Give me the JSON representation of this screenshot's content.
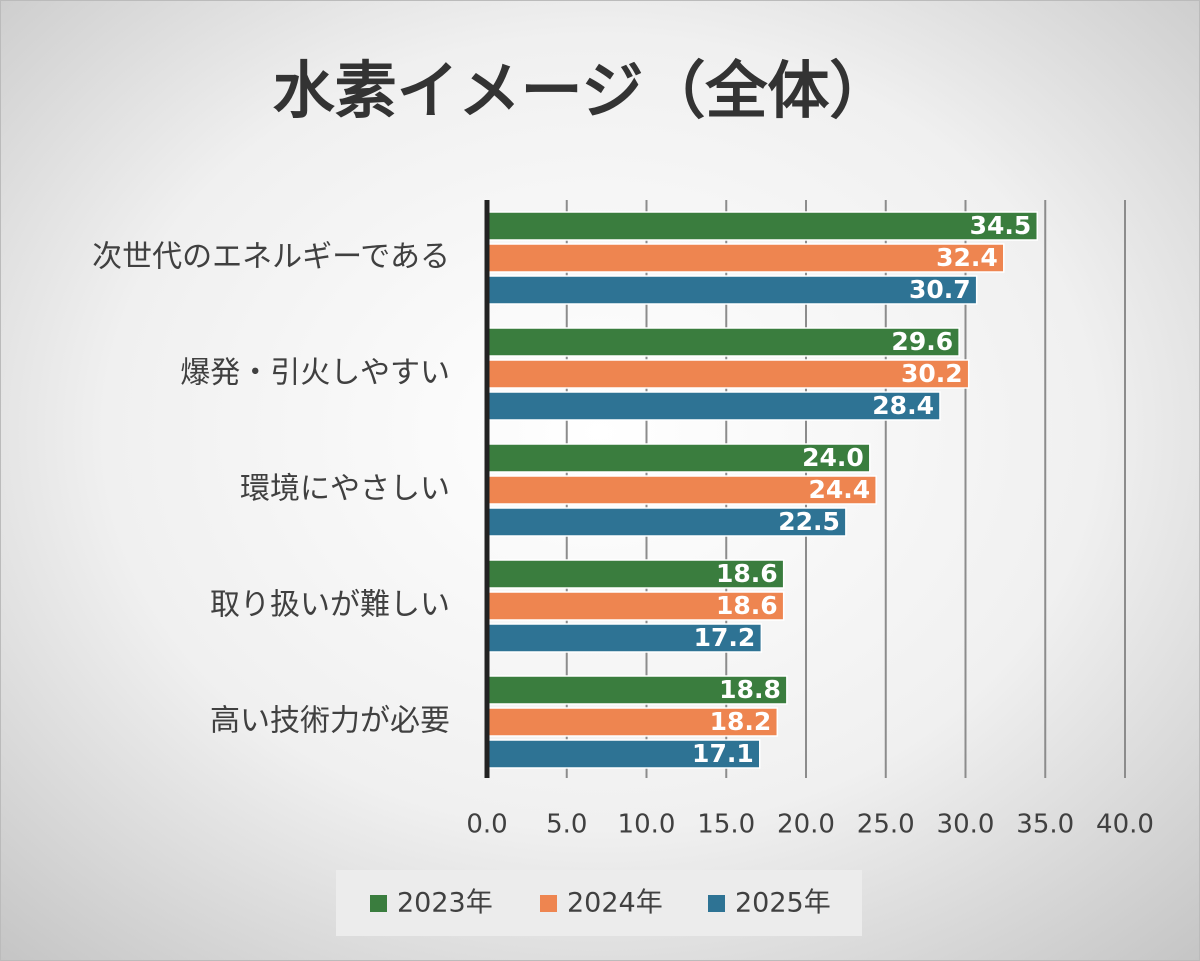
{
  "chart_data": {
    "type": "bar",
    "orientation": "horizontal",
    "title": "水素イメージ（全体）",
    "categories": [
      "次世代のエネルギーである",
      "爆発・引火しやすい",
      "環境にやさしい",
      "取り扱いが難しい",
      "高い技術力が必要"
    ],
    "series": [
      {
        "name": "2023年",
        "color": "#3a7d3e",
        "values": [
          34.5,
          29.6,
          24.0,
          18.6,
          18.8
        ],
        "value_labels": [
          "34.5",
          "29.6",
          "24.0",
          "18.6",
          "18.8"
        ]
      },
      {
        "name": "2024年",
        "color": "#ee8550",
        "values": [
          32.4,
          30.2,
          24.4,
          18.6,
          18.2
        ],
        "value_labels": [
          "32.4",
          "30.2",
          "24.4",
          "18.6",
          "18.2"
        ]
      },
      {
        "name": "2025年",
        "color": "#2e7394",
        "values": [
          30.7,
          28.4,
          22.5,
          17.2,
          17.1
        ],
        "value_labels": [
          "30.7",
          "28.4",
          "22.5",
          "17.2",
          "17.1"
        ]
      }
    ],
    "xlim": [
      0,
      40
    ],
    "xticks": [
      {
        "value": 0,
        "label": "0.0"
      },
      {
        "value": 5,
        "label": "5.0"
      },
      {
        "value": 10,
        "label": "10.0"
      },
      {
        "value": 15,
        "label": "15.0"
      },
      {
        "value": 20,
        "label": "20.0"
      },
      {
        "value": 25,
        "label": "25.0"
      },
      {
        "value": 30,
        "label": "30.0"
      },
      {
        "value": 35,
        "label": "35.0"
      },
      {
        "value": 40,
        "label": "40.0"
      }
    ],
    "grid": true,
    "legend": "bottom"
  }
}
